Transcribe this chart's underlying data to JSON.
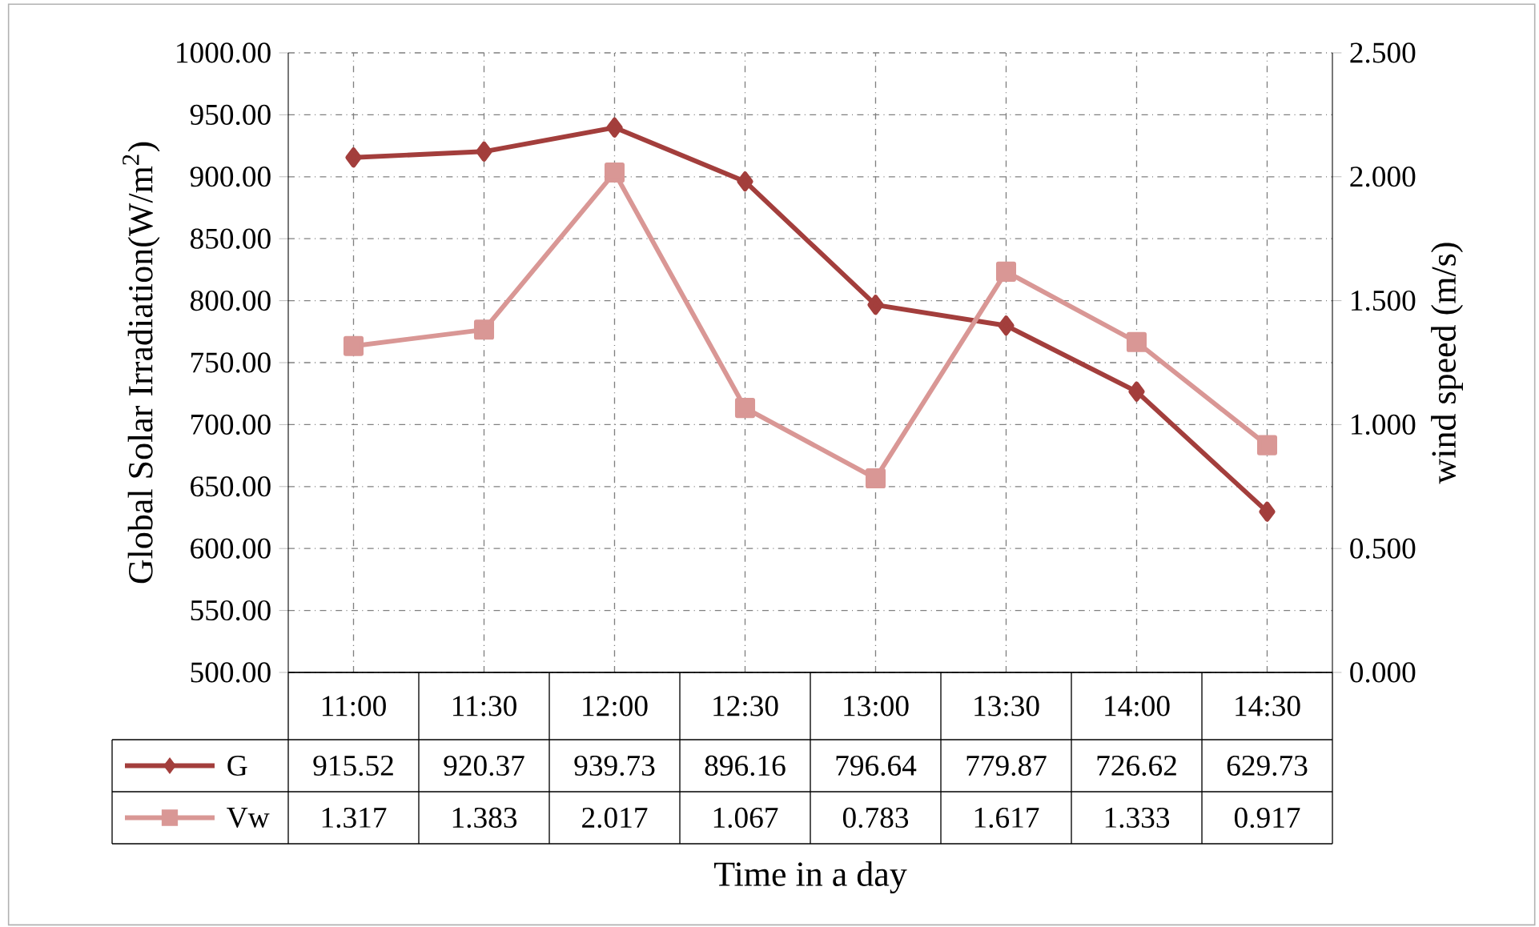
{
  "chart_data": {
    "type": "line",
    "xlabel": "Time in a day",
    "ylabel": "Global Solar Irradiation(W/m$^{2}$)",
    "y2label": "wind speed (m/s)",
    "categories": [
      "11:00",
      "11:30",
      "12:00",
      "12:30",
      "13:00",
      "13:30",
      "14:00",
      "14:30"
    ],
    "series": [
      {
        "name": "G",
        "color": "#a33e3c",
        "marker": "diamond",
        "values": [
          915.52,
          920.37,
          939.73,
          896.16,
          796.64,
          779.87,
          726.62,
          629.73
        ]
      },
      {
        "name": "Vw",
        "color": "#d99795",
        "marker": "square",
        "axis": "y2",
        "values": [
          1.317,
          1.383,
          2.017,
          1.067,
          0.783,
          1.617,
          1.333,
          0.917
        ]
      }
    ],
    "ylim": [
      500,
      1000
    ],
    "yticks": [
      {
        "value": 500,
        "label": "500.00"
      },
      {
        "value": 550,
        "label": "550.00"
      },
      {
        "value": 600,
        "label": "600.00"
      },
      {
        "value": 650,
        "label": "650.00"
      },
      {
        "value": 700,
        "label": "700.00"
      },
      {
        "value": 750,
        "label": "750.00"
      },
      {
        "value": 800,
        "label": "800.00"
      },
      {
        "value": 850,
        "label": "850.00"
      },
      {
        "value": 900,
        "label": "900.00"
      },
      {
        "value": 950,
        "label": "950.00"
      },
      {
        "value": 1000,
        "label": "1000.00"
      }
    ],
    "y2lim": [
      0,
      2.5
    ],
    "y2ticks": [
      {
        "value": 0,
        "label": "0.000"
      },
      {
        "value": 0.5,
        "label": "0.500"
      },
      {
        "value": 1,
        "label": "1.000"
      },
      {
        "value": 1.5,
        "label": "1.500"
      },
      {
        "value": 2,
        "label": "2.000"
      },
      {
        "value": 2.5,
        "label": "2.500"
      }
    ],
    "grid": true,
    "legend": "bottom",
    "data_labels": true
  }
}
